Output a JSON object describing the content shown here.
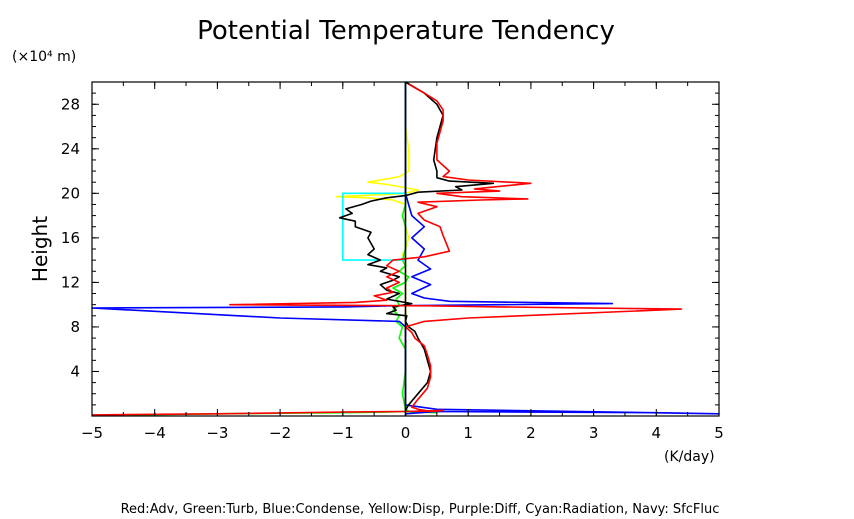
{
  "chart_data": {
    "type": "line",
    "title": "Potential Temperature Tendency",
    "ylabel": "Height",
    "y_unit": "(×10⁴ m)",
    "x_unit": "(K/day)",
    "xlim": [
      -5,
      5
    ],
    "ylim": [
      0,
      30
    ],
    "xticks": [
      -5,
      -4,
      -3,
      -2,
      -1,
      0,
      1,
      2,
      3,
      4,
      5
    ],
    "xtick_labels": [
      "−5",
      "−4",
      "−3",
      "−2",
      "−1",
      "0",
      "1",
      "2",
      "3",
      "4",
      "5"
    ],
    "yticks": [
      4,
      8,
      12,
      16,
      20,
      24,
      28
    ],
    "yminor_step": 1,
    "xminor_step": 0.5,
    "grid": false,
    "legend_text": "Red:Adv, Green:Turb, Blue:Condense, Yellow:Disp, Purple:Diff, Cyan:Radiation, Navy: SfcFluc",
    "series": [
      {
        "color": "#ffff00",
        "points": [
          [
            0,
            0.2
          ],
          [
            0,
            13
          ],
          [
            0,
            14
          ],
          [
            -0.05,
            14.5
          ],
          [
            0,
            15
          ],
          [
            0.05,
            16
          ],
          [
            0,
            17
          ],
          [
            -0.05,
            18
          ],
          [
            0,
            19
          ],
          [
            -0.2,
            19.4
          ],
          [
            -0.6,
            19.6
          ],
          [
            -1.1,
            19.7
          ],
          [
            -0.3,
            19.9
          ],
          [
            0,
            20
          ],
          [
            0.2,
            20.3
          ],
          [
            -0.3,
            20.8
          ],
          [
            -0.6,
            21
          ],
          [
            -0.3,
            21.3
          ],
          [
            -0.1,
            21.5
          ],
          [
            0,
            21.8
          ],
          [
            0.05,
            22
          ],
          [
            0.05,
            24
          ],
          [
            0,
            26
          ],
          [
            0,
            30
          ]
        ]
      },
      {
        "color": "#00ff00",
        "points": [
          [
            -4.4,
            0.1
          ],
          [
            -3.0,
            0.2
          ],
          [
            -1.0,
            0.3
          ],
          [
            -0.3,
            0.35
          ],
          [
            0,
            0.4
          ],
          [
            0.5,
            0.3
          ],
          [
            0.3,
            0.5
          ],
          [
            0.1,
            0.3
          ],
          [
            0,
            0.6
          ],
          [
            -0.05,
            2
          ],
          [
            0,
            4
          ],
          [
            0,
            6
          ],
          [
            -0.1,
            7
          ],
          [
            -0.05,
            8
          ],
          [
            -0.15,
            8.5
          ],
          [
            -0.1,
            9
          ],
          [
            -0.2,
            9.5
          ],
          [
            -0.1,
            10
          ],
          [
            -0.15,
            10.5
          ],
          [
            -0.05,
            11
          ],
          [
            -0.2,
            11.5
          ],
          [
            0,
            12
          ],
          [
            0.05,
            12.5
          ],
          [
            -0.1,
            13
          ],
          [
            0,
            13.5
          ],
          [
            -0.05,
            14
          ],
          [
            0,
            15
          ],
          [
            0,
            17
          ],
          [
            -0.05,
            18
          ],
          [
            0,
            19
          ],
          [
            0,
            20
          ],
          [
            0,
            25
          ],
          [
            0,
            30
          ]
        ]
      },
      {
        "color": "#00ffff",
        "points": [
          [
            0,
            14
          ],
          [
            -1,
            14
          ],
          [
            -1,
            20
          ],
          [
            0,
            20
          ]
        ]
      },
      {
        "color": "#0000ff",
        "points": [
          [
            0,
            0.2
          ],
          [
            0.5,
            0.4
          ],
          [
            2.0,
            0.35
          ],
          [
            4.0,
            0.3
          ],
          [
            5.0,
            0.2
          ],
          [
            0.5,
            0.6
          ],
          [
            0,
            1
          ],
          [
            0,
            6
          ],
          [
            0,
            8
          ],
          [
            -0.1,
            8.5
          ],
          [
            -2.0,
            8.8
          ],
          [
            -5.0,
            9.7
          ],
          [
            -1.0,
            9.8
          ],
          [
            -0.2,
            9.9
          ],
          [
            1.5,
            10.0
          ],
          [
            3.3,
            10.1
          ],
          [
            0.7,
            10.3
          ],
          [
            0.3,
            10.6
          ],
          [
            0.1,
            11
          ],
          [
            0.4,
            11.8
          ],
          [
            0.1,
            12.5
          ],
          [
            0.4,
            13.2
          ],
          [
            0.2,
            14
          ],
          [
            0.3,
            15
          ],
          [
            0.1,
            16
          ],
          [
            0.3,
            17
          ],
          [
            0.1,
            18
          ],
          [
            0.05,
            19
          ],
          [
            0,
            20
          ],
          [
            0,
            30
          ]
        ]
      },
      {
        "color": "#000000",
        "points": [
          [
            0,
            0.5
          ],
          [
            0.05,
            1
          ],
          [
            0.2,
            2
          ],
          [
            0.35,
            3
          ],
          [
            0.4,
            4
          ],
          [
            0.35,
            5
          ],
          [
            0.3,
            6
          ],
          [
            0.2,
            7
          ],
          [
            0.15,
            7.6
          ],
          [
            0.05,
            8
          ],
          [
            0,
            8.5
          ],
          [
            0.02,
            9
          ],
          [
            -0.3,
            9.2
          ],
          [
            -0.15,
            9.5
          ],
          [
            -0.2,
            9.8
          ],
          [
            0.1,
            10.1
          ],
          [
            -0.3,
            10.5
          ],
          [
            -0.1,
            11
          ],
          [
            -0.3,
            11.3
          ],
          [
            -0.4,
            11.8
          ],
          [
            -0.2,
            12.2
          ],
          [
            -0.1,
            12.5
          ],
          [
            -0.4,
            13
          ],
          [
            -0.3,
            13.3
          ],
          [
            -0.6,
            13.6
          ],
          [
            -0.4,
            14
          ],
          [
            -0.6,
            14.5
          ],
          [
            -0.5,
            15
          ],
          [
            -0.6,
            16
          ],
          [
            -0.55,
            16.5
          ],
          [
            -0.8,
            17
          ],
          [
            -0.8,
            17.5
          ],
          [
            -1.05,
            17.8
          ],
          [
            -0.85,
            18.2
          ],
          [
            -0.95,
            18.6
          ],
          [
            -0.7,
            19
          ],
          [
            -0.55,
            19.3
          ],
          [
            -0.3,
            19.6
          ],
          [
            0,
            19.8
          ],
          [
            0.2,
            20.1
          ],
          [
            0.9,
            20.3
          ],
          [
            0.8,
            20.6
          ],
          [
            1.4,
            20.9
          ],
          [
            0.7,
            21.1
          ],
          [
            0.5,
            21.4
          ],
          [
            0.5,
            22
          ],
          [
            0.45,
            23
          ],
          [
            0.5,
            25
          ],
          [
            0.55,
            26
          ],
          [
            0.6,
            27
          ],
          [
            0.5,
            28
          ],
          [
            0.3,
            29
          ],
          [
            0,
            30
          ]
        ]
      },
      {
        "color": "#ff0000",
        "points": [
          [
            -5,
            0.1
          ],
          [
            -3,
            0.2
          ],
          [
            -1,
            0.35
          ],
          [
            0,
            0.4
          ],
          [
            0.6,
            0.5
          ],
          [
            0.4,
            0.4
          ],
          [
            0.2,
            0.6
          ],
          [
            0.1,
            0.8
          ],
          [
            0.2,
            1.5
          ],
          [
            0.35,
            2.5
          ],
          [
            0.4,
            3.5
          ],
          [
            0.4,
            4.5
          ],
          [
            0.35,
            5.5
          ],
          [
            0.3,
            6.3
          ],
          [
            0.15,
            7
          ],
          [
            0.1,
            7.5
          ],
          [
            0,
            8
          ],
          [
            0.3,
            8.5
          ],
          [
            1.0,
            8.8
          ],
          [
            4.4,
            9.6
          ],
          [
            1.5,
            9.8
          ],
          [
            0.4,
            9.9
          ],
          [
            -2.8,
            10
          ],
          [
            -0.8,
            10.2
          ],
          [
            -0.3,
            10.4
          ],
          [
            -0.5,
            10.8
          ],
          [
            -0.2,
            11.1
          ],
          [
            -0.3,
            11.5
          ],
          [
            -0.1,
            12
          ],
          [
            -0.3,
            12.5
          ],
          [
            -0.1,
            13
          ],
          [
            -0.3,
            13.5
          ],
          [
            -0.2,
            14
          ],
          [
            0.3,
            14.3
          ],
          [
            0.7,
            14.8
          ],
          [
            0.65,
            15.5
          ],
          [
            0.6,
            16.2
          ],
          [
            0.55,
            17
          ],
          [
            0.3,
            17.6
          ],
          [
            0.2,
            18.2
          ],
          [
            0.5,
            18.8
          ],
          [
            0.2,
            19.2
          ],
          [
            1.2,
            19.4
          ],
          [
            1.95,
            19.5
          ],
          [
            0.9,
            19.7
          ],
          [
            0.5,
            20
          ],
          [
            1.5,
            20.2
          ],
          [
            1.1,
            20.4
          ],
          [
            2.0,
            20.9
          ],
          [
            1.0,
            21.2
          ],
          [
            0.6,
            21.5
          ],
          [
            0.7,
            22
          ],
          [
            0.5,
            23
          ],
          [
            0.5,
            24.5
          ],
          [
            0.55,
            25.5
          ],
          [
            0.6,
            26.5
          ],
          [
            0.6,
            27.5
          ],
          [
            0.5,
            28.3
          ],
          [
            0.3,
            29
          ],
          [
            0.05,
            29.8
          ]
        ]
      },
      {
        "color": "#000000",
        "points": [
          [
            0,
            0
          ],
          [
            0,
            30
          ]
        ]
      }
    ]
  }
}
